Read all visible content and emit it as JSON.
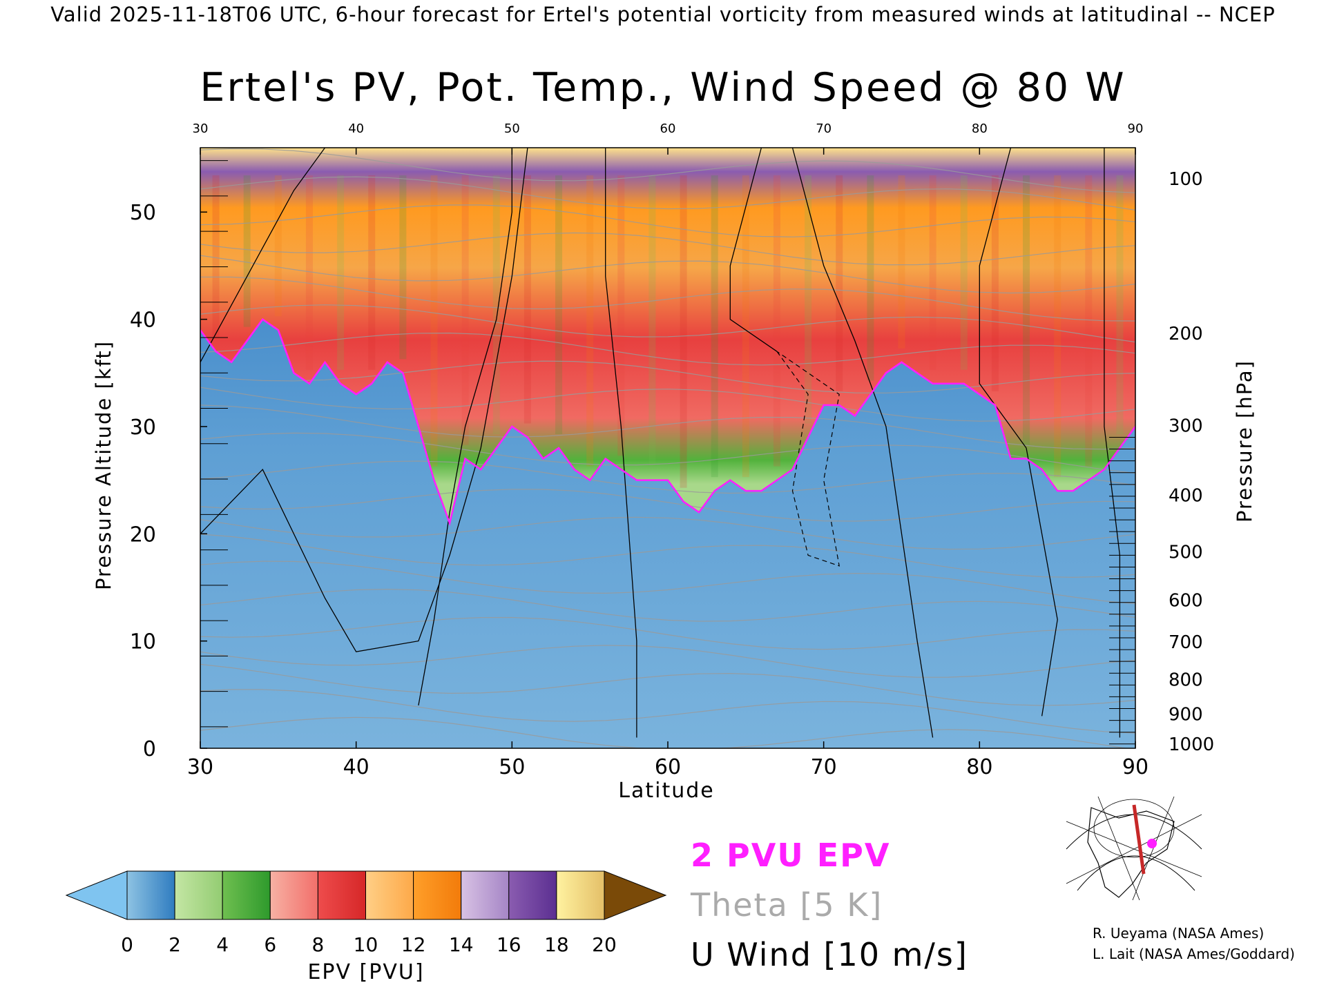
{
  "banner": "Valid 2025-11-18T06 UTC, 6-hour forecast for Ertel's potential vorticity from measured winds at latitudinal -- NCEP",
  "chart_data": {
    "type": "heatmap",
    "title": "Ertel's PV, Pot. Temp., Wind Speed @ 80 W",
    "xlabel": "Latitude",
    "ylabel_left": "Pressure Altitude [kft]",
    "ylabel_right": "Pressure [hPa]",
    "xlim": [
      30,
      90
    ],
    "ylim": [
      0,
      56
    ],
    "x_ticks": [
      30,
      40,
      50,
      60,
      70,
      80,
      90
    ],
    "y_ticks_kft": [
      0,
      10,
      20,
      30,
      40,
      50
    ],
    "pressure_ticks": [
      {
        "hpa": 100,
        "kft": 53.1
      },
      {
        "hpa": 200,
        "kft": 38.7
      },
      {
        "hpa": 300,
        "kft": 30.1
      },
      {
        "hpa": 400,
        "kft": 23.6
      },
      {
        "hpa": 500,
        "kft": 18.3
      },
      {
        "hpa": 600,
        "kft": 13.8
      },
      {
        "hpa": 700,
        "kft": 9.9
      },
      {
        "hpa": 800,
        "kft": 6.4
      },
      {
        "hpa": 900,
        "kft": 3.2
      },
      {
        "hpa": 1000,
        "kft": 0.4
      }
    ],
    "tropopause_2pvu": {
      "lat": [
        30,
        31,
        32,
        33,
        34,
        35,
        36,
        37,
        38,
        39,
        40,
        41,
        42,
        43,
        44,
        45,
        46,
        47,
        48,
        49,
        50,
        51,
        52,
        53,
        54,
        55,
        56,
        57,
        58,
        59,
        60,
        61,
        62,
        63,
        64,
        65,
        66,
        67,
        68,
        69,
        70,
        71,
        72,
        73,
        74,
        75,
        76,
        77,
        78,
        79,
        80,
        81,
        82,
        83,
        84,
        85,
        86,
        87,
        88,
        89,
        90
      ],
      "kft": [
        39,
        37,
        36,
        38,
        40,
        39,
        35,
        34,
        36,
        34,
        33,
        34,
        36,
        35,
        30,
        25,
        21,
        27,
        26,
        28,
        30,
        29,
        27,
        28,
        26,
        25,
        27,
        26,
        25,
        25,
        25,
        23,
        22,
        24,
        25,
        24,
        24,
        25,
        26,
        29,
        32,
        32,
        31,
        33,
        35,
        36,
        35,
        34,
        34,
        34,
        33,
        32,
        27,
        27,
        26,
        24,
        24,
        25,
        26,
        28,
        30
      ]
    },
    "epv_colorbar": {
      "label": "EPV [PVU]",
      "ticks": [
        0,
        2,
        4,
        6,
        8,
        10,
        12,
        14,
        16,
        18,
        20
      ],
      "bins": [
        {
          "from": 0,
          "to": 2,
          "colors": [
            "#8ec3e3",
            "#2f7cc0"
          ]
        },
        {
          "from": 2,
          "to": 4,
          "colors": [
            "#c4e6a4",
            "#93cc72"
          ]
        },
        {
          "from": 4,
          "to": 6,
          "colors": [
            "#6fbf50",
            "#2e9a2c"
          ]
        },
        {
          "from": 6,
          "to": 8,
          "colors": [
            "#f7b1a4",
            "#f26f6a"
          ]
        },
        {
          "from": 8,
          "to": 10,
          "colors": [
            "#ee4c4c",
            "#d62728"
          ]
        },
        {
          "from": 10,
          "to": 12,
          "colors": [
            "#ffcf86",
            "#fda949"
          ]
        },
        {
          "from": 12,
          "to": 14,
          "colors": [
            "#ff9f2a",
            "#f27b0a"
          ]
        },
        {
          "from": 14,
          "to": 16,
          "colors": [
            "#d8c2e4",
            "#a585c6"
          ]
        },
        {
          "from": 16,
          "to": 18,
          "colors": [
            "#8a5cb0",
            "#5b2f91"
          ]
        },
        {
          "from": 18,
          "to": 20,
          "colors": [
            "#fff2a0",
            "#e4bf68"
          ]
        }
      ],
      "under_color": "#7fc4f0",
      "over_color": "#7a4a08"
    },
    "legend": [
      {
        "label": "2 PVU EPV",
        "color": "#ff1fff"
      },
      {
        "label": "Theta [5 K]",
        "color": "#aaaaaa"
      },
      {
        "label": "U Wind [10 m/s]",
        "color": "#000000"
      }
    ]
  },
  "credits": [
    "R. Ueyama (NASA Ames)",
    "L. Lait (NASA Ames/Goddard)"
  ]
}
